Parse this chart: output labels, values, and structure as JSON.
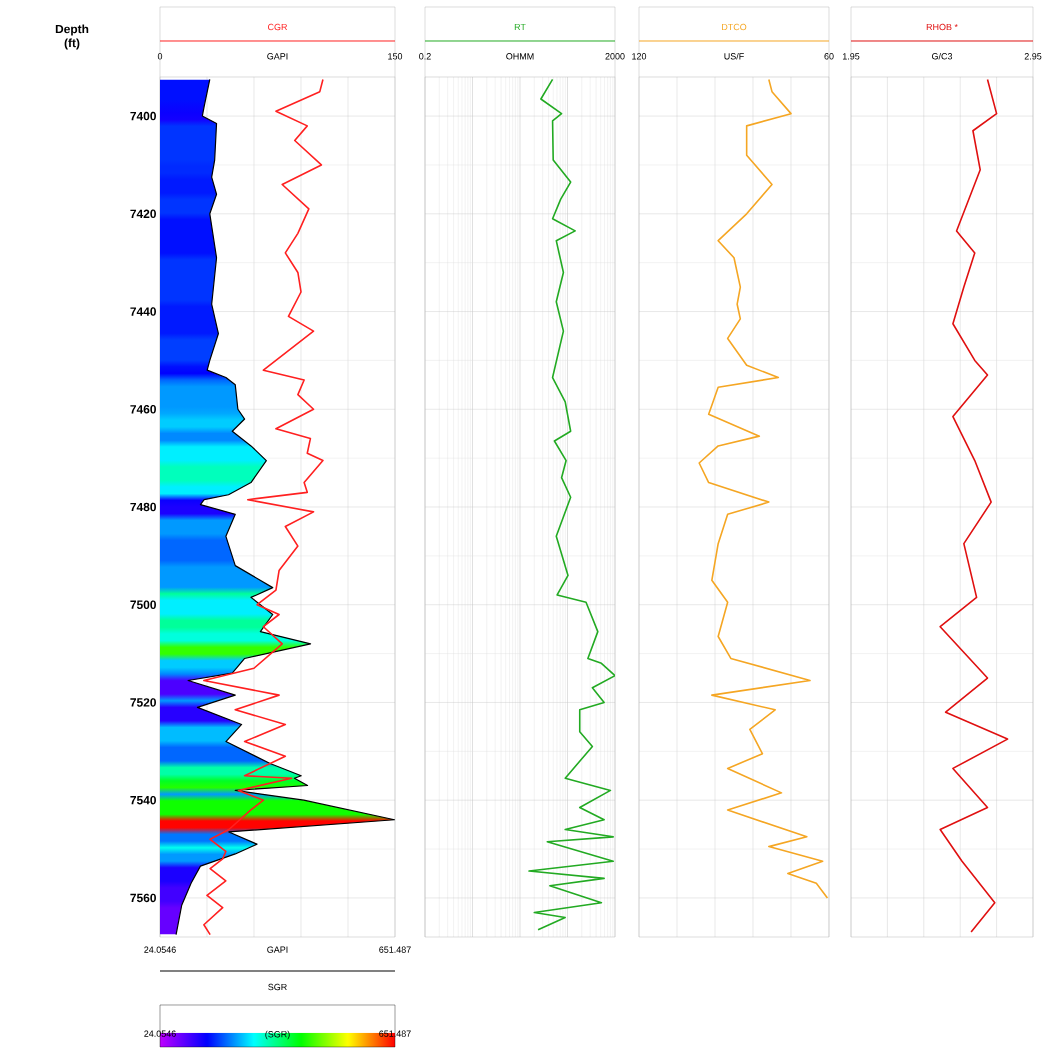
{
  "chart_data": [
    {
      "type": "line",
      "ylabel": "Depth (ft)",
      "ylim": [
        7568,
        7392
      ],
      "yticks": [
        7400,
        7420,
        7440,
        7460,
        7480,
        7500,
        7520,
        7540,
        7560
      ],
      "xlabel": "GAPI",
      "xlim": [
        0,
        150
      ],
      "xticks": [
        0,
        {
          "value": 30,
          "label": null
        },
        {
          "value": 60,
          "label": null
        },
        {
          "value": 90,
          "label": null
        },
        {
          "value": 120,
          "label": null
        },
        150
      ],
      "x2label": "GAPI",
      "x2lim": [
        24.0546,
        651.487
      ],
      "x2ticks": [
        24.0546,
        651.487
      ],
      "clabel": "(SGR)",
      "clim": [
        24.0546,
        651.487
      ],
      "cticks": [
        24.0546,
        651.487
      ],
      "grid": true,
      "series": [
        {
          "name": "SGR",
          "axis": "x2",
          "color": "#000000",
          "x": [
            157,
            142,
            137,
            175,
            170,
            162,
            175,
            157,
            175,
            162,
            180,
            157,
            150,
            200,
            225,
            232,
            250,
            217,
            267,
            308,
            267,
            207,
            142,
            132,
            225,
            200,
            225,
            325,
            267,
            325,
            292,
            426,
            250,
            217,
            99,
            225,
            124,
            242,
            200,
            318,
            401,
            383,
            418,
            225,
            408,
            650,
            208,
            283,
            225,
            132,
            107,
            82,
            67
          ],
          "values": [
            7392.5,
            7398,
            7400,
            7401.5,
            7409,
            7412.5,
            7416,
            7420,
            7429,
            7438.5,
            7444.5,
            7450,
            7452,
            7453.5,
            7455,
            7460,
            7462,
            7464.5,
            7467.5,
            7470.5,
            7475,
            7477.5,
            7478.5,
            7479.5,
            7481.5,
            7486,
            7492,
            7496.5,
            7498.5,
            7502,
            7505.5,
            7508,
            7511,
            7514,
            7515.5,
            7518.5,
            7521,
            7524.5,
            7528,
            7532.5,
            7535,
            7535.5,
            7537,
            7538,
            7540,
            7544,
            7546.5,
            7549,
            7551,
            7553.5,
            7557,
            7561.5,
            7567.5
          ]
        },
        {
          "name": "CGR",
          "color": "#ff2020",
          "x": [
            104,
            102,
            74,
            94,
            86,
            103,
            78,
            95,
            88,
            80,
            88,
            90,
            82,
            98,
            82,
            66,
            92,
            88,
            98,
            74,
            96,
            94,
            104,
            92,
            94,
            56,
            98,
            80,
            88,
            76,
            74,
            62,
            76,
            66,
            78,
            60,
            28,
            76,
            48,
            80,
            54,
            80,
            54,
            84,
            50,
            66,
            58,
            44,
            32,
            42,
            40,
            32,
            42,
            30,
            40,
            28,
            32
          ],
          "values": [
            7392.5,
            7395,
            7399,
            7402,
            7405,
            7410,
            7414,
            7419,
            7424,
            7428,
            7432,
            7436,
            7441,
            7444,
            7448,
            7452,
            7454,
            7457,
            7460,
            7464,
            7466,
            7469,
            7470.5,
            7475,
            7477,
            7478.5,
            7481,
            7484,
            7488,
            7493,
            7497,
            7500,
            7502,
            7504.5,
            7508,
            7513,
            7515.5,
            7518.5,
            7521.5,
            7524.5,
            7528,
            7531,
            7535,
            7535.5,
            7538,
            7540,
            7542,
            7546,
            7548,
            7550.5,
            7552,
            7554,
            7556.5,
            7559.5,
            7562,
            7565.5,
            7567.5
          ]
        }
      ]
    },
    {
      "type": "line",
      "log": "x",
      "tick_labels": "x",
      "ylim": [
        7568,
        7392
      ],
      "yticks": [
        7400,
        7420,
        7440,
        7460,
        7480,
        7500,
        7520,
        7540,
        7560
      ],
      "xlabel": "OHMM",
      "xlim": [
        0.2,
        2000
      ],
      "xticks": [
        0.2,
        {
          "value": 2,
          "label": null
        },
        {
          "value": 20,
          "label": null
        },
        {
          "value": 200,
          "label": null
        },
        2000
      ],
      "grid": true,
      "series": [
        {
          "name": "RT",
          "color": "#22aa22",
          "x": [
            97,
            55,
            150,
            97,
            100,
            233,
            144,
            97,
            290,
            116,
            164,
            116,
            164,
            97,
            179,
            233,
            106,
            187,
            150,
            233,
            116,
            205,
            121,
            491,
            869,
            537,
            1035,
            2000,
            668,
            1181,
            362,
            362,
            668,
            179,
            1607,
            362,
            1181,
            179,
            1832,
            75,
            1832,
            31,
            1181,
            85,
            1035,
            40,
            179,
            48
          ],
          "values": [
            7392.5,
            7396.5,
            7399.5,
            7401,
            7409,
            7413.5,
            7417,
            7421,
            7423.5,
            7425.5,
            7432,
            7438,
            7444,
            7453.5,
            7458.5,
            7464.5,
            7466.5,
            7470.5,
            7474,
            7478,
            7486,
            7494,
            7498,
            7499.5,
            7505.5,
            7511,
            7512,
            7514.5,
            7517,
            7520,
            7521.5,
            7526,
            7529,
            7535.5,
            7538,
            7541.5,
            7544,
            7546,
            7547.5,
            7548.5,
            7552.5,
            7554.5,
            7556,
            7557.5,
            7561,
            7563,
            7564,
            7566.5
          ]
        }
      ]
    },
    {
      "type": "line",
      "tick_labels": "x",
      "ylim": [
        7568,
        7392
      ],
      "yticks": [
        7400,
        7420,
        7440,
        7460,
        7480,
        7500,
        7520,
        7540,
        7560
      ],
      "xlabel": "US/F",
      "xlim": [
        120,
        60
      ],
      "xticks": [
        120,
        {
          "value": 108,
          "label": null
        },
        {
          "value": 96,
          "label": null
        },
        {
          "value": 84,
          "label": null
        },
        {
          "value": 72,
          "label": null
        },
        60
      ],
      "grid": true,
      "series": [
        {
          "name": "DTCO",
          "color": "#f5a623",
          "x": [
            79,
            78,
            72,
            86,
            86,
            78,
            86,
            95,
            90,
            88,
            89,
            88,
            92,
            86,
            76,
            95,
            98,
            82,
            95,
            101,
            98,
            79,
            92,
            95,
            97,
            92,
            95,
            91,
            66,
            97,
            77,
            85,
            81,
            92,
            75,
            92,
            67,
            79,
            62,
            73,
            64,
            60.5
          ],
          "values": [
            7392.5,
            7395,
            7399.5,
            7402,
            7408,
            7414,
            7420,
            7425.5,
            7429,
            7435,
            7438.5,
            7441.5,
            7445.5,
            7451,
            7453.5,
            7455.5,
            7461,
            7465.5,
            7467.5,
            7471,
            7475,
            7479,
            7481.5,
            7487.5,
            7495,
            7499.5,
            7506.5,
            7511,
            7515.5,
            7518.5,
            7521.5,
            7525.5,
            7530.5,
            7533.5,
            7538.5,
            7542,
            7547.5,
            7549.5,
            7552.5,
            7555,
            7557,
            7560
          ]
        }
      ]
    },
    {
      "type": "line",
      "tick_labels": "x",
      "ylim": [
        7568,
        7392
      ],
      "yticks": [
        7400,
        7420,
        7440,
        7460,
        7480,
        7500,
        7520,
        7540,
        7560
      ],
      "xlabel": "G/C3",
      "xlim": [
        1.95,
        2.95
      ],
      "xticks": [
        1.95,
        {
          "value": 2.15,
          "label": null
        },
        {
          "value": 2.35,
          "label": null
        },
        {
          "value": 2.55,
          "label": null
        },
        {
          "value": 2.75,
          "label": null
        },
        2.95
      ],
      "grid": true,
      "series": [
        {
          "name": "RHOB *",
          "color": "#e01010",
          "x": [
            2.7,
            2.75,
            2.62,
            2.66,
            2.53,
            2.63,
            2.57,
            2.51,
            2.63,
            2.7,
            2.51,
            2.63,
            2.72,
            2.57,
            2.64,
            2.44,
            2.7,
            2.47,
            2.81,
            2.51,
            2.7,
            2.44,
            2.56,
            2.74,
            2.61
          ],
          "values": [
            7392.5,
            7399.5,
            7403,
            7411,
            7423.5,
            7428,
            7435,
            7442.5,
            7450,
            7453,
            7461.5,
            7470.5,
            7479,
            7487.5,
            7498.5,
            7504.5,
            7515,
            7522,
            7527.5,
            7533.5,
            7541.5,
            7546,
            7552.5,
            7561,
            7567
          ]
        }
      ]
    }
  ]
}
